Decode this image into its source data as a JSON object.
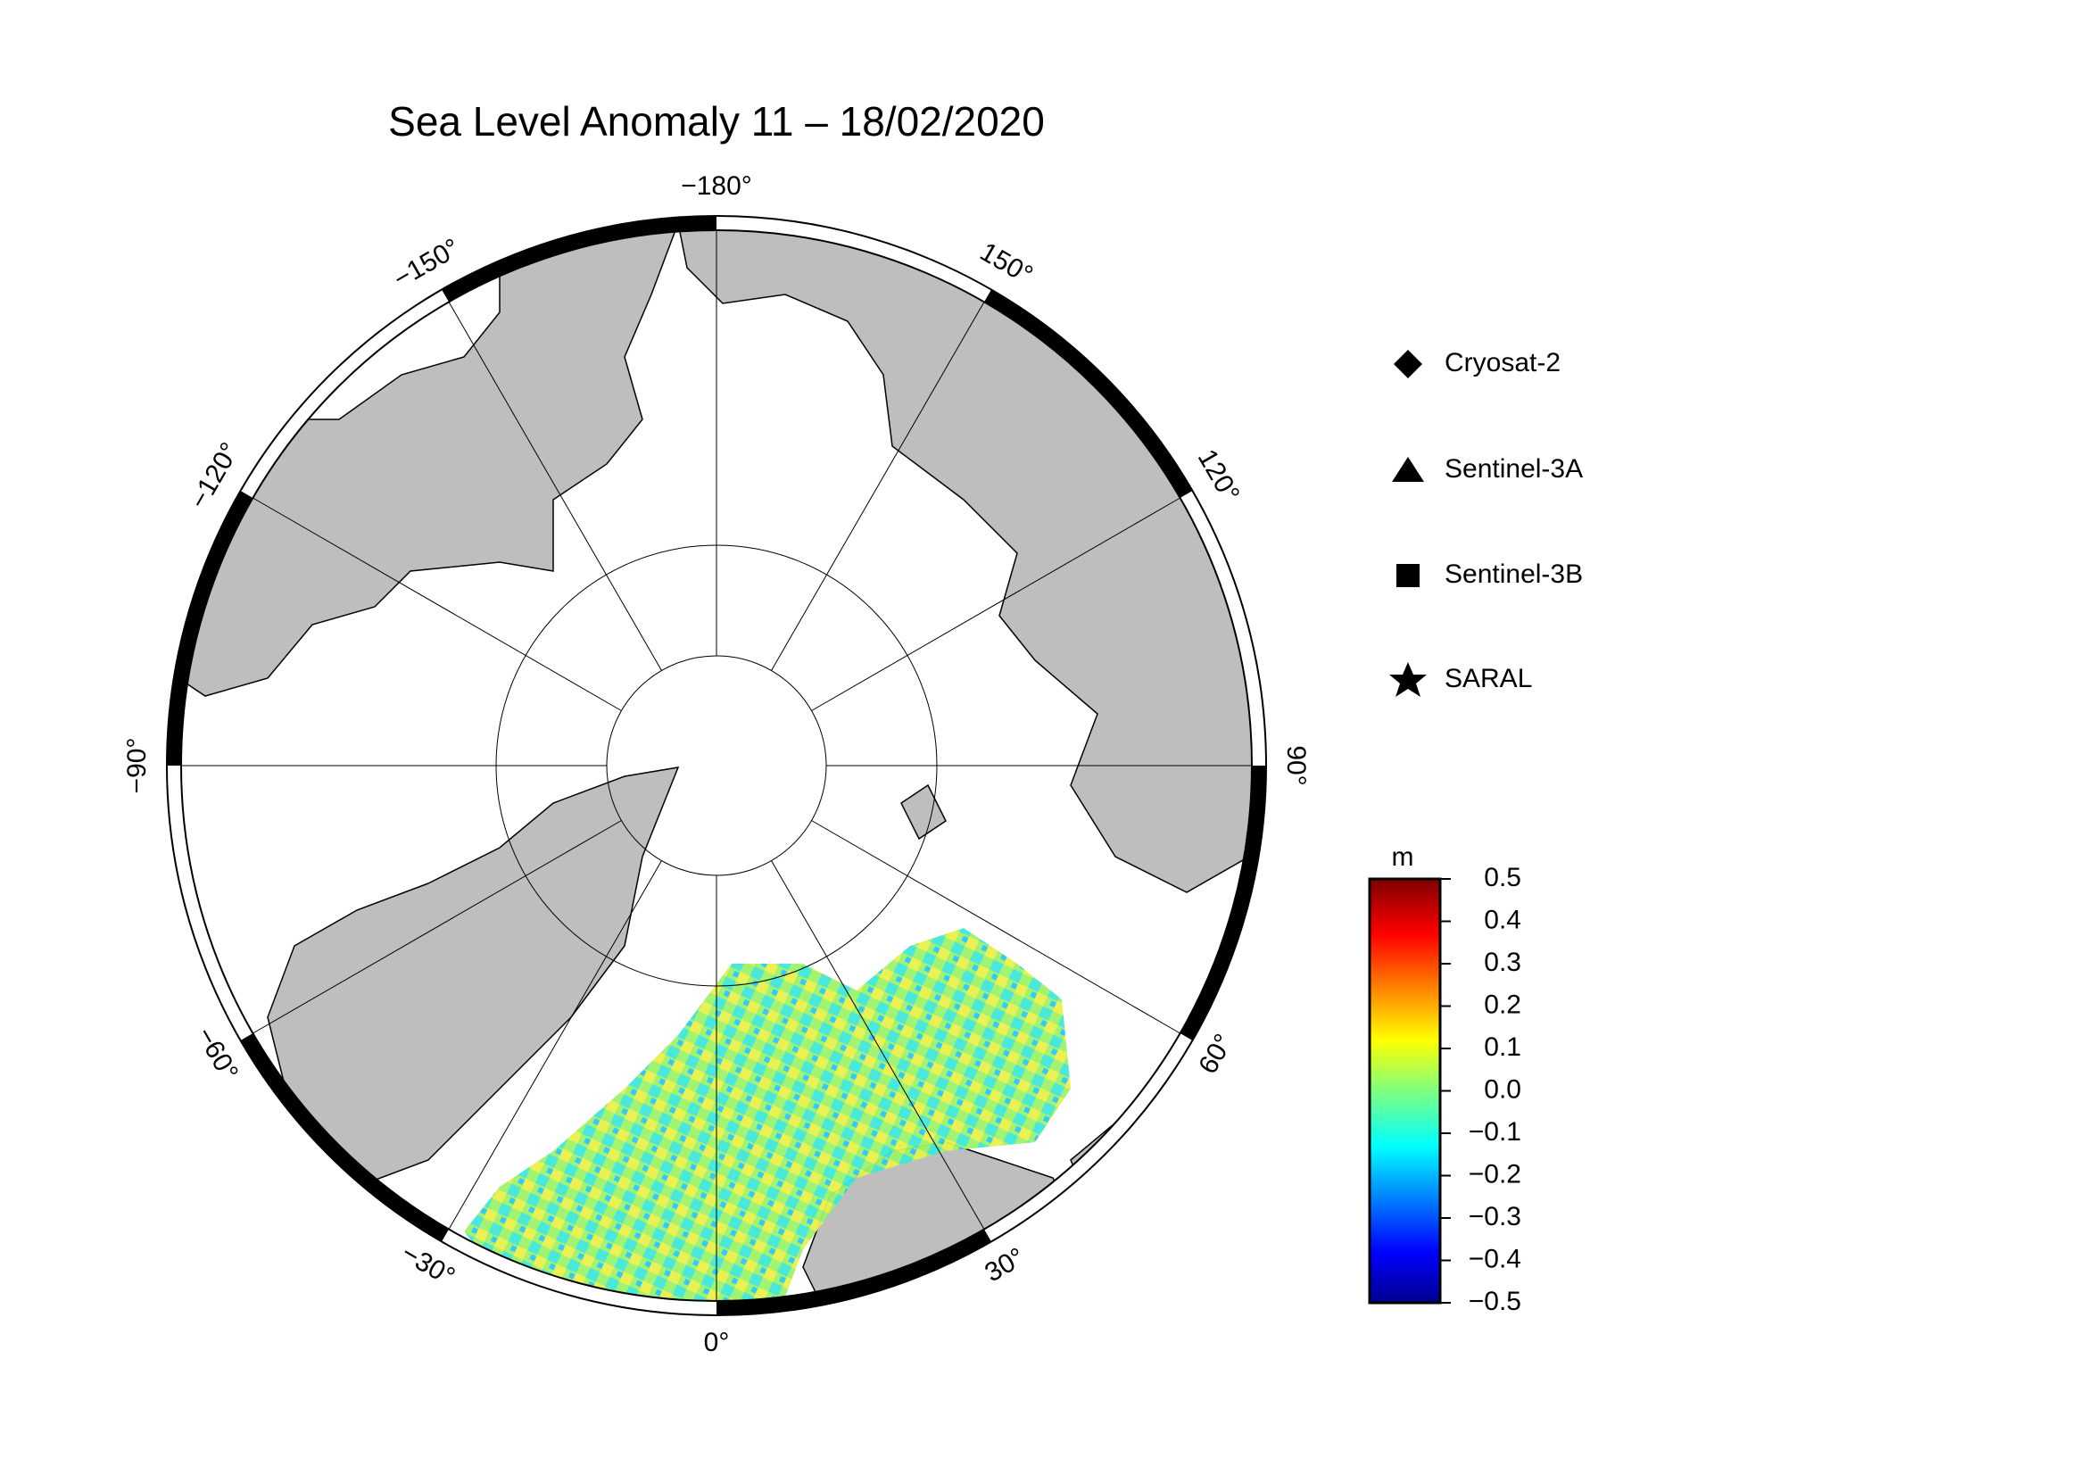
{
  "title": "Sea Level Anomaly 11 – 18/02/2020",
  "meridians": [
    {
      "value": -180,
      "label": "−180°"
    },
    {
      "value": -150,
      "label": "−150°"
    },
    {
      "value": -120,
      "label": "−120°"
    },
    {
      "value": -90,
      "label": "−90°"
    },
    {
      "value": -60,
      "label": "−60°"
    },
    {
      "value": -30,
      "label": "−30°"
    },
    {
      "value": 0,
      "label": "0°"
    },
    {
      "value": 30,
      "label": "30°"
    },
    {
      "value": 60,
      "label": "60°"
    },
    {
      "value": 90,
      "label": "90°"
    },
    {
      "value": 120,
      "label": "120°"
    },
    {
      "value": 150,
      "label": "150°"
    }
  ],
  "legend": [
    "Cryosat-2",
    "Sentinel-3A",
    "Sentinel-3B",
    "SARAL"
  ],
  "colorbar": {
    "unit": "m",
    "lim": [
      -0.5,
      0.5
    ],
    "ticks": [
      0.5,
      0.4,
      0.3,
      0.2,
      0.1,
      {
        "value": 0,
        "label": "0.0"
      },
      {
        "value": -0.1,
        "label": "−0.1"
      },
      {
        "value": -0.2,
        "label": "−0.2"
      },
      {
        "value": -0.3,
        "label": "−0.3"
      },
      {
        "value": -0.4,
        "label": "−0.4"
      },
      {
        "value": -0.5,
        "label": "−0.5"
      }
    ]
  }
}
